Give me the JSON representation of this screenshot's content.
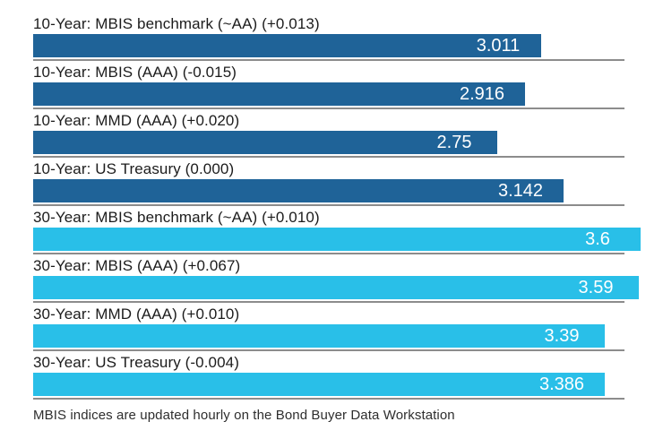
{
  "chart_data": {
    "type": "bar",
    "orientation": "horizontal",
    "title": "",
    "xlabel": "",
    "ylabel": "",
    "axis": {
      "min": 0,
      "implied_max": 3.7,
      "gridlines": false,
      "tick_labels_visible": false
    },
    "colors": {
      "ten_year_bar": "#1f6398",
      "thirty_year_bar": "#29bfe8",
      "baseline": "#8c8c8c",
      "value_text": "#ffffff",
      "label_text": "#1c1c1c"
    },
    "rows": [
      {
        "group": "10-Year",
        "label": "10-Year: MBIS benchmark (~AA) (+0.013)",
        "value": 3.011,
        "value_label": "3.011",
        "change": "+0.013"
      },
      {
        "group": "10-Year",
        "label": "10-Year: MBIS (AAA) (-0.015)",
        "value": 2.916,
        "value_label": "2.916",
        "change": "-0.015"
      },
      {
        "group": "10-Year",
        "label": "10-Year: MMD (AAA) (+0.020)",
        "value": 2.75,
        "value_label": "2.75",
        "change": "+0.020"
      },
      {
        "group": "10-Year",
        "label": "10-Year: US Treasury (0.000)",
        "value": 3.142,
        "value_label": "3.142",
        "change": "0.000"
      },
      {
        "group": "30-Year",
        "label": "30-Year: MBIS benchmark (~AA) (+0.010)",
        "value": 3.6,
        "value_label": "3.6",
        "change": "+0.010"
      },
      {
        "group": "30-Year",
        "label": "30-Year: MBIS (AAA) (+0.067)",
        "value": 3.59,
        "value_label": "3.59",
        "change": "+0.067"
      },
      {
        "group": "30-Year",
        "label": "30-Year: MMD (AAA) (+0.010)",
        "value": 3.39,
        "value_label": "3.39",
        "change": "+0.010"
      },
      {
        "group": "30-Year",
        "label": "30-Year: US Treasury (-0.004)",
        "value": 3.386,
        "value_label": "3.386",
        "change": "-0.004"
      }
    ]
  },
  "footer": {
    "note": "MBIS indices are updated hourly on the Bond Buyer Data Workstation"
  }
}
